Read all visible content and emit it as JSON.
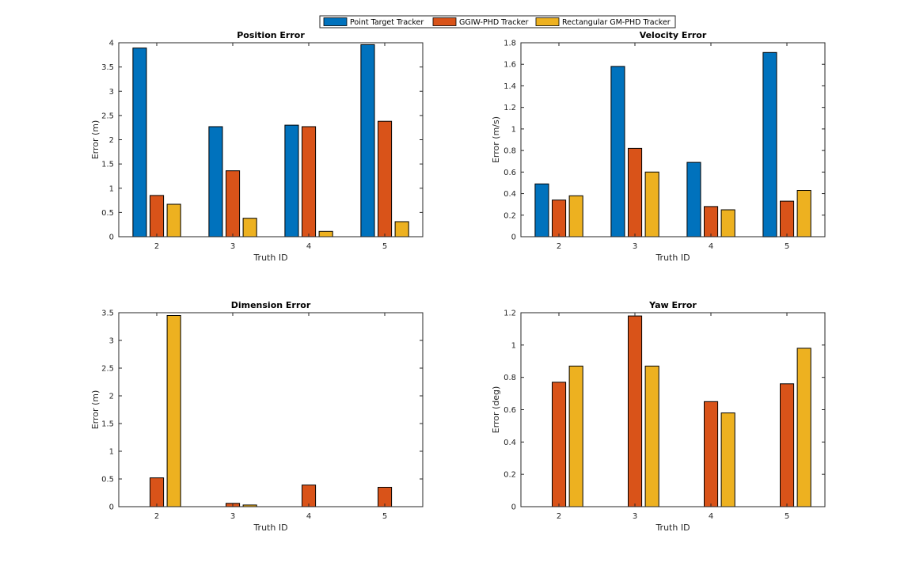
{
  "legend": {
    "entries": [
      {
        "name": "Point Target Tracker",
        "color": "#0072BD"
      },
      {
        "name": "GGIW-PHD Tracker",
        "color": "#D95319"
      },
      {
        "name": "Rectangular GM-PHD Tracker",
        "color": "#EDB120"
      }
    ]
  },
  "chart_data": [
    {
      "type": "bar",
      "title": "Position Error",
      "xlabel": "Truth ID",
      "ylabel": "Error (m)",
      "categories": [
        "2",
        "3",
        "4",
        "5"
      ],
      "ylim": [
        0,
        4
      ],
      "yticks": [
        0,
        0.5,
        1,
        1.5,
        2,
        2.5,
        3,
        3.5,
        4
      ],
      "ytick_labels": [
        "0",
        "0.5",
        "1",
        "1.5",
        "2",
        "2.5",
        "3",
        "3.5",
        "4"
      ],
      "series": [
        {
          "name": "Point Target Tracker",
          "values": [
            3.89,
            2.27,
            2.3,
            3.96
          ]
        },
        {
          "name": "GGIW-PHD Tracker",
          "values": [
            0.85,
            1.36,
            2.27,
            2.38
          ]
        },
        {
          "name": "Rectangular GM-PHD Tracker",
          "values": [
            0.67,
            0.38,
            0.11,
            0.31
          ]
        }
      ]
    },
    {
      "type": "bar",
      "title": "Velocity Error",
      "xlabel": "Truth ID",
      "ylabel": "Error (m/s)",
      "categories": [
        "2",
        "3",
        "4",
        "5"
      ],
      "ylim": [
        0,
        1.8
      ],
      "yticks": [
        0,
        0.2,
        0.4,
        0.6,
        0.8,
        1,
        1.2,
        1.4,
        1.6,
        1.8
      ],
      "ytick_labels": [
        "0",
        "0.2",
        "0.4",
        "0.6",
        "0.8",
        "1",
        "1.2",
        "1.4",
        "1.6",
        "1.8"
      ],
      "series": [
        {
          "name": "Point Target Tracker",
          "values": [
            0.49,
            1.58,
            0.69,
            1.71
          ]
        },
        {
          "name": "GGIW-PHD Tracker",
          "values": [
            0.34,
            0.82,
            0.28,
            0.33
          ]
        },
        {
          "name": "Rectangular GM-PHD Tracker",
          "values": [
            0.38,
            0.6,
            0.25,
            0.43
          ]
        }
      ]
    },
    {
      "type": "bar",
      "title": "Dimension Error",
      "xlabel": "Truth ID",
      "ylabel": "Error (m)",
      "categories": [
        "2",
        "3",
        "4",
        "5"
      ],
      "ylim": [
        0,
        3.5
      ],
      "yticks": [
        0,
        0.5,
        1,
        1.5,
        2,
        2.5,
        3,
        3.5
      ],
      "ytick_labels": [
        "0",
        "0.5",
        "1",
        "1.5",
        "2",
        "2.5",
        "3",
        "3.5"
      ],
      "series": [
        {
          "name": "Point Target Tracker",
          "values": [
            0,
            0,
            0,
            0
          ]
        },
        {
          "name": "GGIW-PHD Tracker",
          "values": [
            0.52,
            0.06,
            0.39,
            0.35
          ]
        },
        {
          "name": "Rectangular GM-PHD Tracker",
          "values": [
            3.45,
            0.03,
            0,
            0
          ]
        }
      ]
    },
    {
      "type": "bar",
      "title": "Yaw Error",
      "xlabel": "Truth ID",
      "ylabel": "Error (deg)",
      "categories": [
        "2",
        "3",
        "4",
        "5"
      ],
      "ylim": [
        0,
        1.2
      ],
      "yticks": [
        0,
        0.2,
        0.4,
        0.6,
        0.8,
        1,
        1.2
      ],
      "ytick_labels": [
        "0",
        "0.2",
        "0.4",
        "0.6",
        "0.8",
        "1",
        "1.2"
      ],
      "series": [
        {
          "name": "Point Target Tracker",
          "values": [
            0,
            0,
            0,
            0
          ]
        },
        {
          "name": "GGIW-PHD Tracker",
          "values": [
            0.77,
            1.18,
            0.65,
            0.76
          ]
        },
        {
          "name": "Rectangular GM-PHD Tracker",
          "values": [
            0.87,
            0.87,
            0.58,
            0.98
          ]
        }
      ]
    }
  ]
}
